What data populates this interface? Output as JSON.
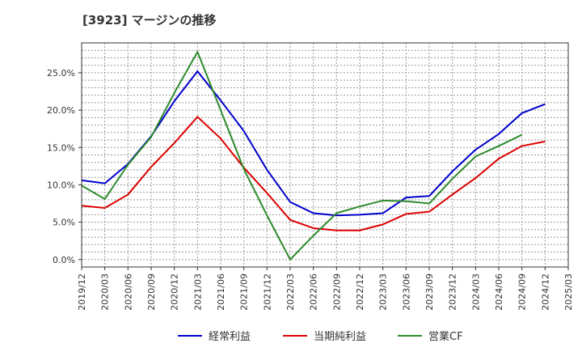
{
  "chart_data": {
    "type": "line",
    "title": "[3923]  マージンの推移",
    "xlabel": "",
    "ylabel": "",
    "x": [
      "2019/12",
      "2020/03",
      "2020/06",
      "2020/09",
      "2020/12",
      "2021/03",
      "2021/06",
      "2021/09",
      "2021/12",
      "2022/03",
      "2022/06",
      "2022/09",
      "2022/12",
      "2023/03",
      "2023/06",
      "2023/09",
      "2023/12",
      "2024/03",
      "2024/06",
      "2024/09",
      "2024/12",
      "2025/03"
    ],
    "ylim": [
      -1.0,
      29.0
    ],
    "yticks": [
      0,
      5,
      10,
      15,
      20,
      25
    ],
    "ytick_labels": [
      "0.0%",
      "5.0%",
      "10.0%",
      "15.0%",
      "20.0%",
      "25.0%"
    ],
    "grid": true,
    "legend_position": "bottom",
    "series": [
      {
        "name": "経常利益",
        "color": "#0000cc",
        "values": [
          10.6,
          10.2,
          12.8,
          16.5,
          21.2,
          25.2,
          21.3,
          17.2,
          12.0,
          7.7,
          6.2,
          5.9,
          6.0,
          6.2,
          8.3,
          8.5,
          11.8,
          14.7,
          16.8,
          19.6,
          20.8,
          null
        ]
      },
      {
        "name": "当期純利益",
        "color": "#dd0000",
        "values": [
          7.2,
          6.9,
          8.7,
          12.4,
          15.6,
          19.1,
          16.2,
          12.3,
          8.9,
          5.3,
          4.2,
          3.9,
          3.9,
          4.7,
          6.1,
          6.4,
          8.7,
          10.9,
          13.5,
          15.2,
          15.8,
          null
        ]
      },
      {
        "name": "営業CF",
        "color": "#2e8b2e",
        "values": [
          9.9,
          8.1,
          12.7,
          16.4,
          22.3,
          27.8,
          20.0,
          12.1,
          5.9,
          0.0,
          3.2,
          6.2,
          7.1,
          7.9,
          7.8,
          7.5,
          10.8,
          13.8,
          15.2,
          16.7,
          null,
          null
        ]
      }
    ]
  }
}
